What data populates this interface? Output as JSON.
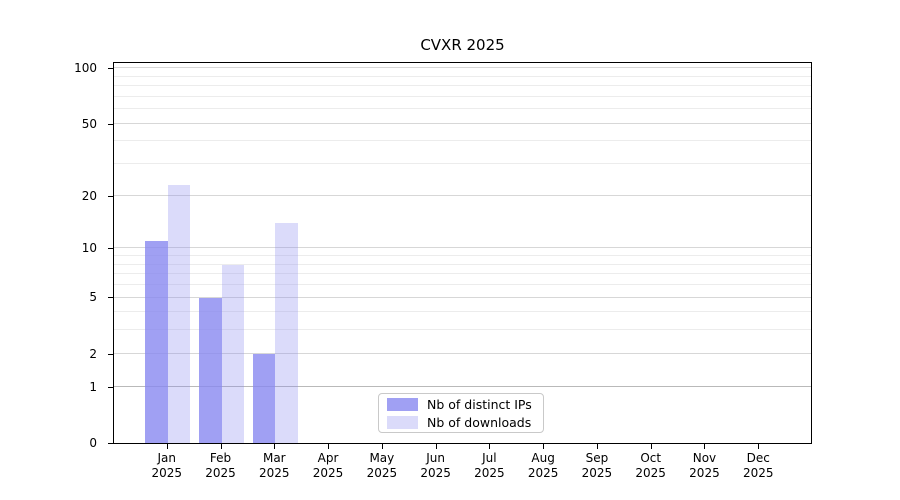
{
  "chart_data": {
    "type": "bar",
    "title": "CVXR 2025",
    "categories": [
      "Jan",
      "Feb",
      "Mar",
      "Apr",
      "May",
      "Jun",
      "Jul",
      "Aug",
      "Sep",
      "Oct",
      "Nov",
      "Dec"
    ],
    "category_year": "2025",
    "series": [
      {
        "name": "Nb of distinct IPs",
        "color": "rgba(136,136,240,0.8)",
        "values": [
          11,
          5,
          2,
          0,
          0,
          0,
          0,
          0,
          0,
          0,
          0,
          0
        ]
      },
      {
        "name": "Nb of downloads",
        "color": "rgba(136,136,240,0.3)",
        "values": [
          23,
          8,
          14,
          0,
          0,
          0,
          0,
          0,
          0,
          0,
          0,
          0
        ]
      }
    ],
    "yscale": "log10(1+y)",
    "yticks": [
      0,
      1,
      2,
      5,
      10,
      20,
      50,
      100
    ],
    "minor_gridlines": [
      3,
      4,
      6,
      7,
      8,
      9,
      30,
      40,
      60,
      70,
      80,
      90
    ],
    "emphasized_gridline": 1,
    "ylim": [
      0,
      106
    ],
    "grid": "horizontal major+minor",
    "legend_position": "lower center inside",
    "colors": {
      "bar_base": "#8888f0",
      "major_grid": "#d7d7d7",
      "minor_grid": "#ececec",
      "emph_grid": "#b9b9b9",
      "axis": "#000000",
      "text": "#000000",
      "background": "#ffffff"
    }
  }
}
